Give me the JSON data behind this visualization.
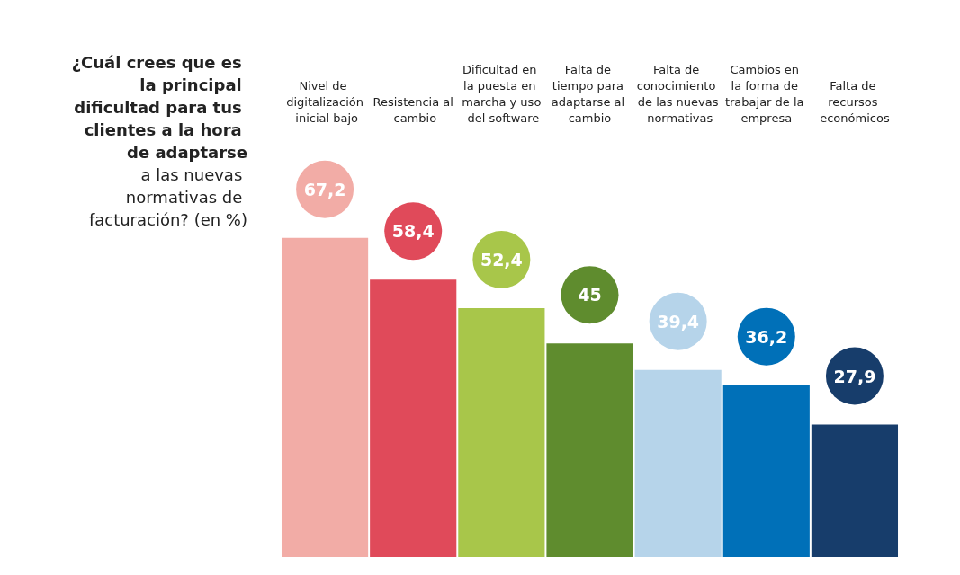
{
  "chart_data": {
    "type": "bar",
    "title": "¿Cuál crees que es la principal dificultad para tus clientes a la hora de adaptarse",
    "subtitle": "a las nuevas normativas de facturación? (en %)",
    "categories": [
      "Nivel de digitalización inicial bajo",
      "Resistencia al cambio",
      "Dificultad en la puesta en marcha y uso del software",
      "Falta de tiempo para adaptarse al cambio",
      "Falta de conocimiento de las nuevas normativas",
      "Cambios en la forma de trabajar de la empresa",
      "Falta de recursos económicos"
    ],
    "values": [
      67.2,
      58.4,
      52.4,
      45,
      39.4,
      36.2,
      27.9
    ],
    "value_labels": [
      "67,2",
      "58,4",
      "52,4",
      "45",
      "39,4",
      "36,2",
      "27,9"
    ],
    "colors": [
      "#f2aca6",
      "#e04a5a",
      "#a8c64a",
      "#5f8c2e",
      "#b6d4ea",
      "#0070b8",
      "#173d6b"
    ]
  }
}
